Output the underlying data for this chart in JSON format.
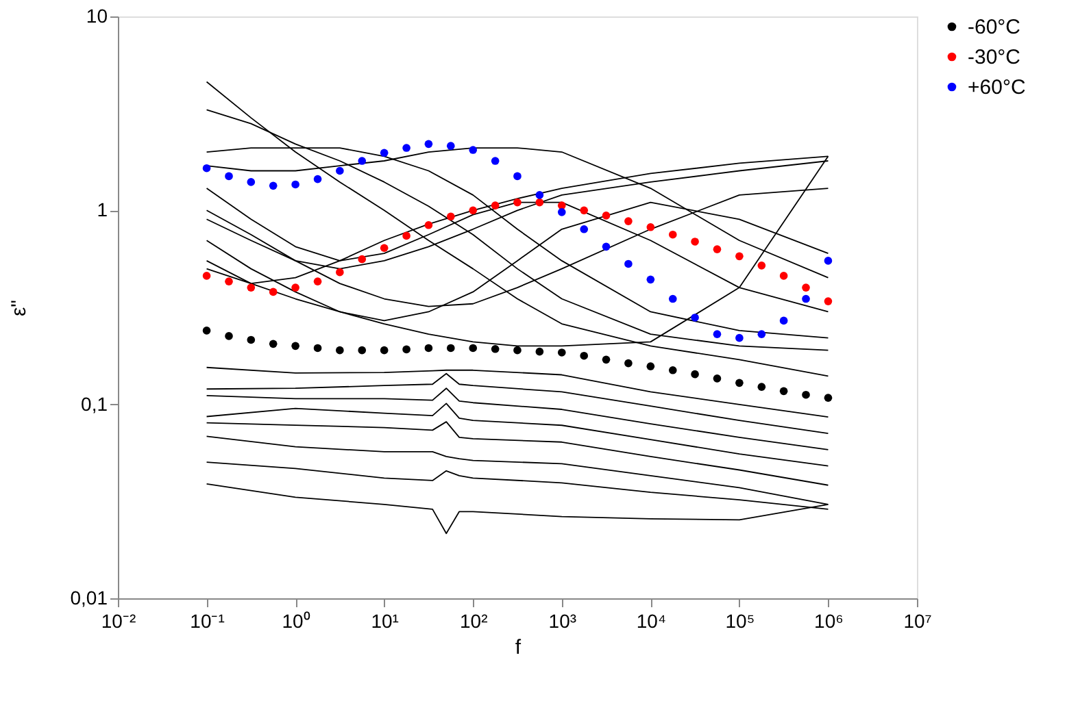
{
  "chart_data": {
    "type": "line",
    "xlabel": "f",
    "ylabel": "ε\"",
    "log": "xy",
    "grid": false,
    "legend": "top right",
    "xlim": [
      0.01,
      10000000
    ],
    "ylim": [
      0.01,
      10
    ],
    "xticks": [
      {
        "value": 0.01,
        "label": "10⁻²"
      },
      {
        "value": 0.1,
        "label": "10⁻¹"
      },
      {
        "value": 1,
        "label": "10⁰"
      },
      {
        "value": 10,
        "label": "10¹"
      },
      {
        "value": 100,
        "label": "10²"
      },
      {
        "value": 1000,
        "label": "10³"
      },
      {
        "value": 10000,
        "label": "10⁴"
      },
      {
        "value": 100000,
        "label": "10⁵"
      },
      {
        "value": 1000000,
        "label": "10⁶"
      },
      {
        "value": 10000000,
        "label": "10⁷"
      }
    ],
    "yticks": [
      {
        "value": 0.01,
        "label": "0,01"
      },
      {
        "value": 0.1,
        "label": "0,1"
      },
      1,
      10
    ],
    "series": [
      {
        "color": "#000000",
        "x": [
          0.1,
          1,
          10,
          35,
          50,
          70,
          100,
          1000,
          10000,
          100000,
          1000000
        ],
        "values": [
          0.155,
          0.145,
          0.146,
          0.149,
          0.15,
          0.15,
          0.15,
          0.142,
          0.116,
          0.0998,
          0.086
        ]
      },
      {
        "color": "#000000",
        "x": [
          0.1,
          1,
          10,
          35,
          50,
          70,
          100,
          1000,
          10000,
          100000,
          1000000
        ],
        "values": [
          0.12,
          0.121,
          0.125,
          0.127,
          0.144,
          0.127,
          0.125,
          0.116,
          0.098,
          0.0826,
          0.0708
        ]
      },
      {
        "color": "#000000",
        "x": [
          0.1,
          1,
          10,
          35,
          50,
          70,
          100,
          1000,
          10000,
          100000,
          1000000
        ],
        "values": [
          0.111,
          0.107,
          0.107,
          0.105,
          0.121,
          0.104,
          0.102,
          0.0942,
          0.0794,
          0.0676,
          0.0584
        ]
      },
      {
        "color": "#000000",
        "x": [
          0.1,
          1,
          10,
          35,
          50,
          70,
          100,
          1000,
          10000,
          100000,
          1000000
        ],
        "values": [
          0.0865,
          0.0953,
          0.09,
          0.0875,
          0.101,
          0.0849,
          0.0826,
          0.078,
          0.0658,
          0.0555,
          0.0481
        ]
      },
      {
        "color": "#000000",
        "x": [
          0.1,
          1,
          10,
          35,
          50,
          70,
          100,
          1000,
          10000,
          100000,
          1000000
        ],
        "values": [
          0.0803,
          0.0781,
          0.0759,
          0.0736,
          0.0813,
          0.0676,
          0.0665,
          0.0639,
          0.0538,
          0.0459,
          0.0383
        ]
      },
      {
        "color": "#000000",
        "x": [
          0.1,
          1,
          10,
          35,
          50,
          70,
          100,
          1000,
          10000,
          100000,
          1000000
        ],
        "values": [
          0.0684,
          0.0604,
          0.057,
          0.057,
          0.0538,
          0.0524,
          0.0514,
          0.0494,
          0.0429,
          0.0372,
          0.0305
        ]
      },
      {
        "color": "#000000",
        "x": [
          0.1,
          1,
          10,
          35,
          50,
          70,
          100,
          1000,
          10000,
          100000,
          1000000
        ],
        "values": [
          0.0503,
          0.0467,
          0.0417,
          0.0405,
          0.0454,
          0.0429,
          0.0417,
          0.0394,
          0.0352,
          0.0322,
          0.0288
        ]
      },
      {
        "color": "#000000",
        "x": [
          0.1,
          1,
          10,
          35,
          50,
          70,
          100,
          1000,
          10000,
          100000,
          1000000
        ],
        "values": [
          0.0389,
          0.0332,
          0.0305,
          0.0288,
          0.0216,
          0.028,
          0.028,
          0.0264,
          0.0257,
          0.0254,
          0.0305
        ]
      },
      {
        "color": "#000000",
        "x": [
          0.1,
          0.316,
          1,
          3.16,
          10,
          31.6,
          100,
          316,
          1000,
          10000,
          100000,
          1000000
        ],
        "values": [
          4.6,
          3.0,
          2.0,
          1.4,
          1.0,
          0.7,
          0.5,
          0.35,
          0.26,
          0.2,
          0.17,
          0.14
        ]
      },
      {
        "color": "#000000",
        "x": [
          0.1,
          0.316,
          1,
          3.16,
          10,
          31.6,
          100,
          316,
          1000,
          10000,
          100000,
          1000000
        ],
        "values": [
          3.3,
          2.8,
          2.2,
          1.8,
          1.4,
          1.05,
          0.75,
          0.5,
          0.35,
          0.23,
          0.2,
          0.19
        ]
      },
      {
        "color": "#000000",
        "x": [
          0.1,
          0.316,
          1,
          3.16,
          10,
          31.6,
          100,
          316,
          1000,
          10000,
          100000,
          1000000
        ],
        "values": [
          2.0,
          2.1,
          2.1,
          2.1,
          1.9,
          1.6,
          1.2,
          0.8,
          0.55,
          0.3,
          0.24,
          0.22
        ]
      },
      {
        "color": "#000000",
        "x": [
          0.1,
          0.316,
          1,
          3.16,
          10,
          31.6,
          100,
          316,
          1000,
          10000,
          100000,
          1000000
        ],
        "values": [
          1.7,
          1.6,
          1.6,
          1.7,
          1.8,
          2.0,
          2.1,
          2.1,
          2.0,
          1.3,
          0.7,
          0.45
        ]
      },
      {
        "color": "#000000",
        "x": [
          0.1,
          0.316,
          1,
          3.16,
          10,
          31.6,
          100,
          316,
          1000,
          10000,
          100000,
          1000000
        ],
        "values": [
          0.5,
          0.42,
          0.45,
          0.55,
          0.7,
          0.85,
          1.0,
          1.15,
          1.3,
          1.55,
          1.75,
          1.9
        ]
      },
      {
        "color": "#000000",
        "x": [
          0.1,
          0.316,
          1,
          3.16,
          10,
          31.6,
          100,
          316,
          1000,
          10000,
          100000,
          1000000
        ],
        "values": [
          0.9,
          0.7,
          0.55,
          0.5,
          0.55,
          0.65,
          0.8,
          1.0,
          1.2,
          1.4,
          1.6,
          1.8
        ]
      },
      {
        "color": "#000000",
        "x": [
          0.1,
          0.316,
          1,
          3.16,
          10,
          31.6,
          100,
          316,
          1000,
          10000,
          100000,
          1000000
        ],
        "values": [
          1.0,
          0.75,
          0.55,
          0.42,
          0.35,
          0.32,
          0.33,
          0.4,
          0.5,
          0.8,
          1.2,
          1.3
        ]
      },
      {
        "color": "#000000",
        "x": [
          0.1,
          0.316,
          1,
          3.16,
          10,
          31.6,
          100,
          316,
          1000,
          10000,
          100000,
          1000000
        ],
        "values": [
          0.7,
          0.5,
          0.38,
          0.3,
          0.27,
          0.3,
          0.38,
          0.55,
          0.8,
          1.1,
          0.9,
          0.6
        ]
      },
      {
        "color": "#000000",
        "x": [
          0.1,
          0.316,
          1,
          3.16,
          10,
          31.6,
          100,
          316,
          1000,
          10000,
          100000,
          1000000
        ],
        "values": [
          1.3,
          0.9,
          0.65,
          0.55,
          0.6,
          0.75,
          0.95,
          1.1,
          1.1,
          0.7,
          0.4,
          0.3
        ]
      },
      {
        "color": "#000000",
        "x": [
          0.1,
          0.316,
          1,
          3.16,
          10,
          31.6,
          100,
          316,
          1000,
          10000,
          100000,
          1000000
        ],
        "values": [
          0.55,
          0.42,
          0.35,
          0.3,
          0.26,
          0.23,
          0.21,
          0.2,
          0.2,
          0.21,
          0.4,
          1.9
        ]
      },
      {
        "type": "scatter",
        "marker": "circle",
        "name": "-60°C",
        "color": "#000000",
        "x": [
          0.1,
          0.178,
          0.316,
          0.562,
          1,
          1.78,
          3.16,
          5.62,
          10,
          17.8,
          31.6,
          56.2,
          100,
          178,
          316,
          562,
          1000,
          1780,
          3160,
          5620,
          10000,
          17800,
          31600,
          56200,
          100000,
          178000,
          316000,
          562000,
          1000000
        ],
        "values": [
          0.24,
          0.225,
          0.215,
          0.205,
          0.2,
          0.195,
          0.19,
          0.19,
          0.19,
          0.192,
          0.195,
          0.195,
          0.195,
          0.193,
          0.19,
          0.187,
          0.185,
          0.178,
          0.17,
          0.163,
          0.157,
          0.15,
          0.143,
          0.136,
          0.129,
          0.123,
          0.117,
          0.112,
          0.108
        ]
      },
      {
        "type": "scatter",
        "marker": "circle",
        "name": "-30°C",
        "color": "#ff0000",
        "x": [
          0.1,
          0.178,
          0.316,
          0.562,
          1,
          1.78,
          3.16,
          5.62,
          10,
          17.8,
          31.6,
          56.2,
          100,
          178,
          316,
          562,
          1000,
          1780,
          3160,
          5620,
          10000,
          17800,
          31600,
          56200,
          100000,
          178000,
          316000,
          562000,
          1000000
        ],
        "values": [
          0.46,
          0.43,
          0.4,
          0.38,
          0.4,
          0.43,
          0.48,
          0.56,
          0.64,
          0.74,
          0.84,
          0.93,
          1.0,
          1.06,
          1.1,
          1.1,
          1.06,
          1.0,
          0.94,
          0.88,
          0.82,
          0.75,
          0.69,
          0.63,
          0.58,
          0.52,
          0.46,
          0.4,
          0.34
        ]
      },
      {
        "type": "scatter",
        "marker": "circle",
        "name": "+60°C",
        "color": "#0000ff",
        "x": [
          0.1,
          0.178,
          0.316,
          0.562,
          1,
          1.78,
          3.16,
          5.62,
          10,
          17.8,
          31.6,
          56.2,
          100,
          178,
          316,
          562,
          1000,
          1780,
          3160,
          5620,
          10000,
          17800,
          31600,
          56200,
          100000,
          178000,
          316000,
          562000,
          1000000
        ],
        "values": [
          1.65,
          1.5,
          1.4,
          1.34,
          1.36,
          1.45,
          1.6,
          1.8,
          1.98,
          2.1,
          2.2,
          2.15,
          2.05,
          1.8,
          1.5,
          1.2,
          0.98,
          0.8,
          0.65,
          0.53,
          0.44,
          0.35,
          0.28,
          0.23,
          0.22,
          0.23,
          0.27,
          0.35,
          0.55
        ]
      }
    ]
  }
}
